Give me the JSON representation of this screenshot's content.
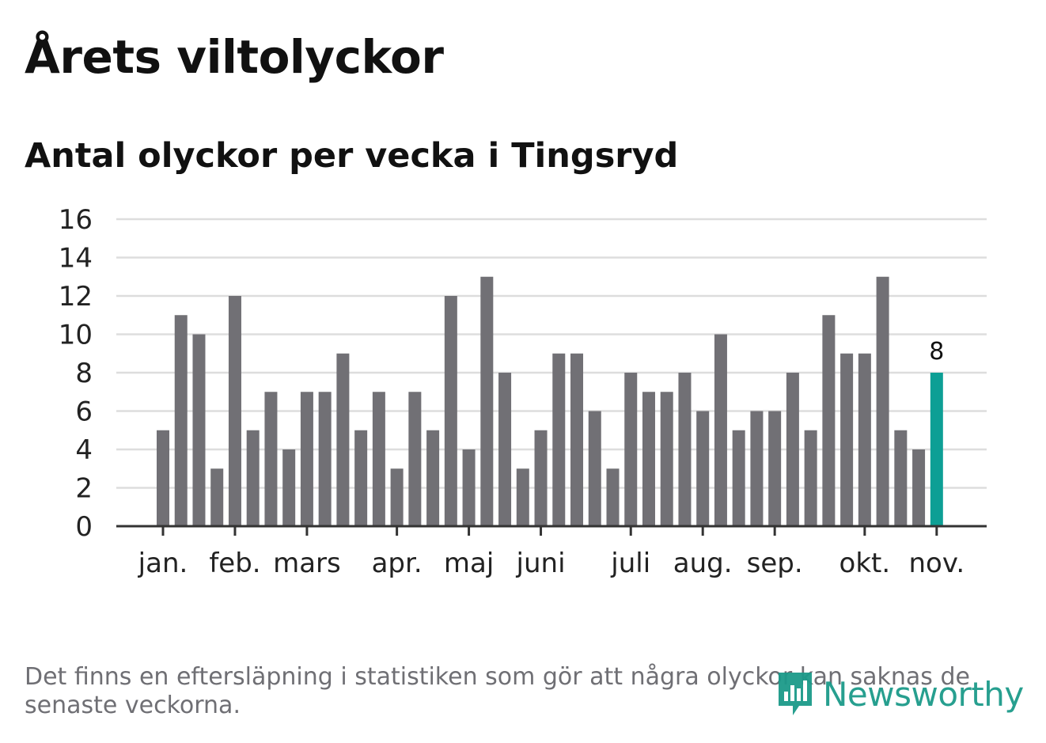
{
  "header": {
    "title": "Årets viltolyckor",
    "subtitle": "Antal olyckor per vecka i Tingsryd"
  },
  "footnote": "Det finns en eftersläpning i statistiken som gör att några olyckor kan saknas de senaste veckorna.",
  "brand": {
    "name": "Newsworthy",
    "color": "#1c9a8a"
  },
  "colors": {
    "bar": "#717075",
    "highlight": "#0d9f95",
    "grid": "#dddddd",
    "axis": "#333333"
  },
  "chart_data": {
    "type": "bar",
    "title": "Antal olyckor per vecka i Tingsryd",
    "xlabel": "",
    "ylabel": "",
    "ylim": [
      0,
      16
    ],
    "yticks": [
      0,
      2,
      4,
      6,
      8,
      10,
      12,
      14,
      16
    ],
    "grid": true,
    "values": [
      5,
      11,
      10,
      3,
      12,
      5,
      7,
      4,
      7,
      7,
      9,
      5,
      7,
      3,
      7,
      5,
      12,
      4,
      13,
      8,
      3,
      5,
      9,
      9,
      6,
      3,
      8,
      7,
      7,
      8,
      6,
      10,
      5,
      6,
      6,
      8,
      5,
      11,
      9,
      9,
      13,
      5,
      4,
      8
    ],
    "highlight_index": 43,
    "highlight_label": "8",
    "month_labels": [
      {
        "label": "jan.",
        "week": 1
      },
      {
        "label": "feb.",
        "week": 5
      },
      {
        "label": "mars",
        "week": 9
      },
      {
        "label": "apr.",
        "week": 14
      },
      {
        "label": "maj",
        "week": 18
      },
      {
        "label": "juni",
        "week": 22
      },
      {
        "label": "juli",
        "week": 27
      },
      {
        "label": "aug.",
        "week": 31
      },
      {
        "label": "sep.",
        "week": 35
      },
      {
        "label": "okt.",
        "week": 40
      },
      {
        "label": "nov.",
        "week": 44
      }
    ]
  }
}
